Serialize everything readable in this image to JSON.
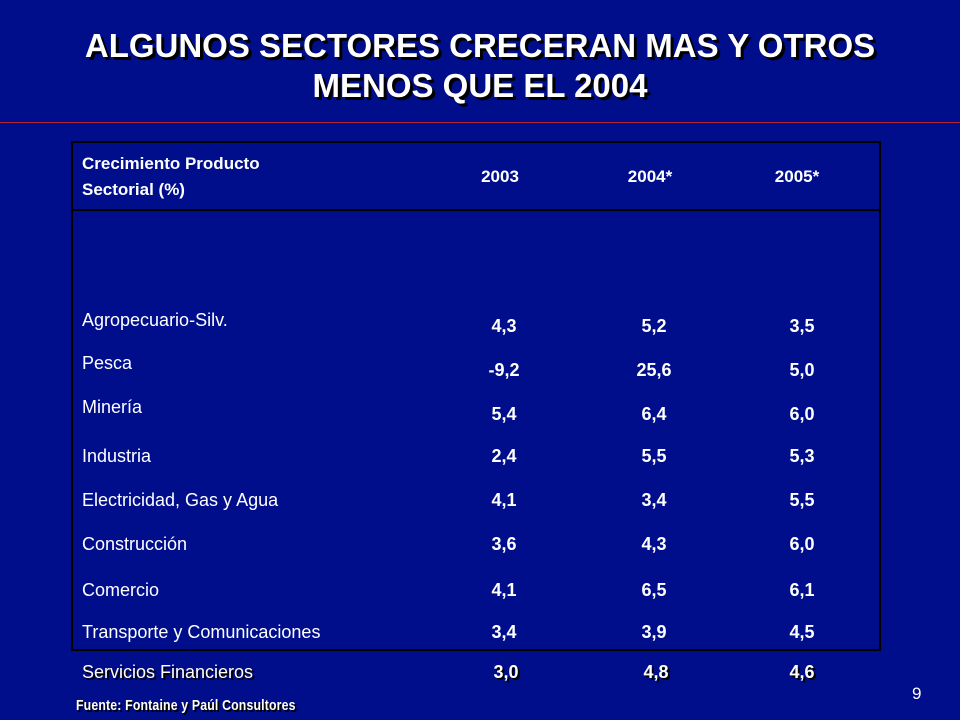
{
  "title": {
    "line1": "ALGUNOS SECTORES CRECERAN MAS Y OTROS",
    "line2": "MENOS QUE EL 2004"
  },
  "table": {
    "header": {
      "sector_line1": "Crecimiento Producto",
      "sector_line2": "Sectorial (%)",
      "years": [
        "2003",
        "2004*",
        "2005*"
      ]
    },
    "rows": [
      {
        "label": "Agropecuario-Silv.",
        "values": [
          "4,3",
          "5,2",
          "3,5"
        ]
      },
      {
        "label": "Pesca",
        "values": [
          "-9,2",
          "25,6",
          "5,0"
        ]
      },
      {
        "label": "Minería",
        "values": [
          "5,4",
          "6,4",
          "6,0"
        ]
      },
      {
        "label": "Industria",
        "values": [
          "2,4",
          "5,5",
          "5,3"
        ]
      },
      {
        "label": "Electricidad, Gas y Agua",
        "values": [
          "4,1",
          "3,4",
          "5,5"
        ]
      },
      {
        "label": "Construcción",
        "values": [
          "3,6",
          "4,3",
          "6,0"
        ]
      },
      {
        "label": "Comercio",
        "values": [
          "4,1",
          "6,5",
          "6,1"
        ]
      },
      {
        "label": "Transporte y Comunicaciones",
        "values": [
          "3,4",
          "3,9",
          "4,5"
        ]
      },
      {
        "label": "Servicios Financieros",
        "values": [
          "3,0",
          "4,8",
          "4,6"
        ]
      }
    ]
  },
  "page_number": "9",
  "source": "Fuente: Fontaine y Paúl Consultores",
  "colors": {
    "background": "#000e8c",
    "text": "#ffffff",
    "rule": "#b0223a",
    "table_border": "#000000"
  }
}
